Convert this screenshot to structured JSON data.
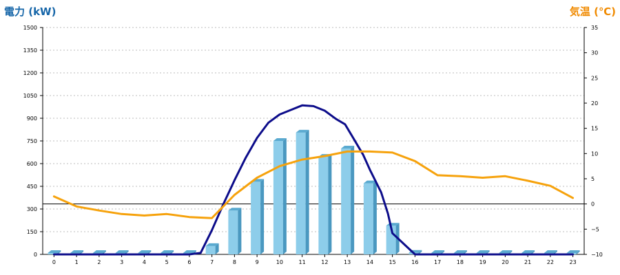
{
  "colors": {
    "left_title": "#1565a8",
    "right_title": "#f08a00",
    "bar_front": "#8dcdea",
    "bar_side": "#4a98c0",
    "bar_top": "#5aaad0",
    "power_line": "#0c0c8a",
    "temp_line": "#f6a20c",
    "grid": "#bbbbbb",
    "axis": "#000000"
  },
  "chart_data": {
    "type": "bar",
    "left_axis_title": "電力 (kW)",
    "right_axis_title": "気温 (℃)",
    "grid": true,
    "categories": [
      "0",
      "1",
      "2",
      "3",
      "4",
      "5",
      "6",
      "7",
      "8",
      "9",
      "10",
      "11",
      "12",
      "13",
      "14",
      "15",
      "16",
      "17",
      "18",
      "19",
      "20",
      "21",
      "22",
      "23"
    ],
    "left_ylim": [
      0,
      1500
    ],
    "left_ticks": [
      "0",
      "150",
      "300",
      "450",
      "600",
      "750",
      "900",
      "1050",
      "1200",
      "1350",
      "1500"
    ],
    "right_ylim": [
      -10,
      35
    ],
    "right_ticks": [
      "−10",
      "−5",
      "0",
      "5",
      "10",
      "15",
      "20",
      "25",
      "30",
      "35"
    ],
    "series": [
      {
        "type": "bar",
        "axis": "left",
        "values": [
          0,
          0,
          0,
          0,
          0,
          0,
          0,
          55,
          290,
          480,
          750,
          805,
          645,
          700,
          470,
          190,
          10,
          0,
          0,
          0,
          0,
          0,
          0,
          0
        ]
      },
      {
        "type": "line",
        "axis": "left",
        "x": [
          0,
          1,
          2,
          3,
          4,
          5,
          6,
          6.5,
          7,
          7.5,
          8,
          8.5,
          9,
          9.5,
          10,
          10.5,
          11,
          11.5,
          12,
          12.5,
          12.9,
          13.3,
          13.7,
          14,
          14.5,
          14.8,
          15,
          15.5,
          16,
          17,
          18,
          19,
          20,
          21,
          22,
          23
        ],
        "values": [
          0,
          0,
          0,
          0,
          0,
          0,
          0,
          10,
          160,
          330,
          490,
          640,
          770,
          870,
          925,
          955,
          985,
          980,
          950,
          895,
          860,
          760,
          660,
          560,
          410,
          270,
          140,
          70,
          0,
          0,
          0,
          0,
          0,
          0,
          0,
          0
        ]
      },
      {
        "type": "line",
        "axis": "right",
        "x": [
          0,
          1,
          2,
          3,
          4,
          5,
          6,
          7,
          8,
          9,
          10,
          11,
          12,
          13,
          14,
          15,
          16,
          17,
          18,
          19,
          20,
          21,
          22,
          23
        ],
        "values": [
          1.5,
          -0.5,
          -1.3,
          -2.0,
          -2.3,
          -2.0,
          -2.6,
          -2.8,
          1.8,
          5.2,
          7.5,
          8.8,
          9.5,
          10.4,
          10.4,
          10.2,
          8.5,
          5.7,
          5.5,
          5.2,
          5.5,
          4.6,
          3.6,
          1.2
        ]
      }
    ]
  }
}
